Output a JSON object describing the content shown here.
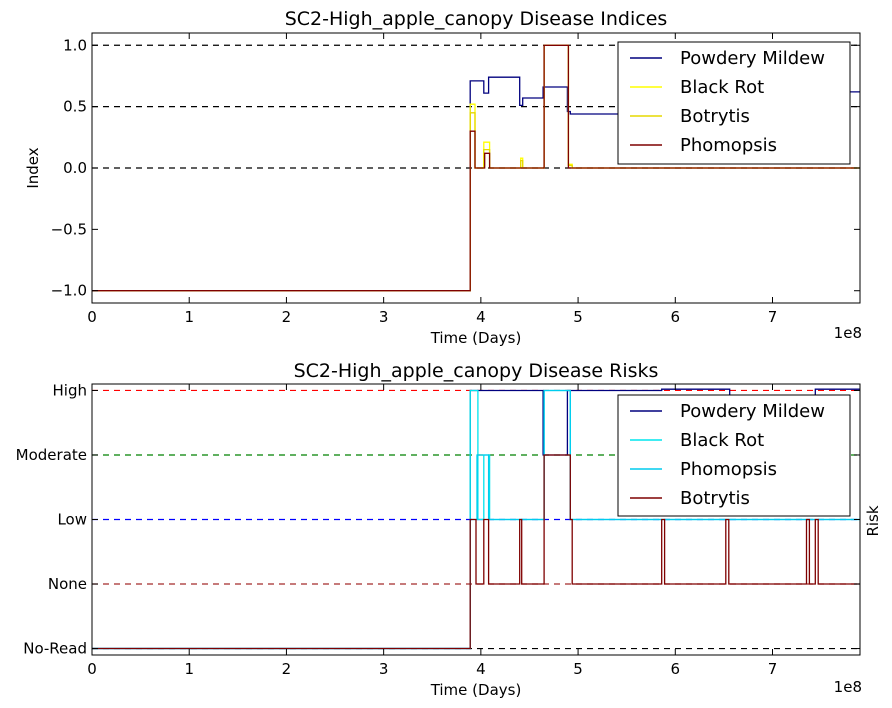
{
  "chart_data": [
    {
      "type": "line",
      "title": "SC2-High_apple_canopy Disease Indices",
      "xlabel": "Time (Days)",
      "ylabel": "Index",
      "x_offset_label": "1e8",
      "xlim": [
        0,
        790000000
      ],
      "ylim": [
        -1.1,
        1.1
      ],
      "x_ticks": [
        0,
        1,
        2,
        3,
        4,
        5,
        6,
        7
      ],
      "y_ticks": [
        {
          "value": 1.0,
          "label": "1.0"
        },
        {
          "value": 0.5,
          "label": "0.5"
        },
        {
          "value": 0.0,
          "label": "0.0"
        },
        {
          "value": -0.5,
          "label": "−0.5"
        },
        {
          "value": -1.0,
          "label": "−1.0"
        }
      ],
      "reference_lines": [
        {
          "y": 1.0,
          "color": "#000000"
        },
        {
          "y": 0.5,
          "color": "#000000"
        },
        {
          "y": 0.0,
          "color": "#000000"
        }
      ],
      "legend": "top-right",
      "series": [
        {
          "name": "Powdery Mildew",
          "color": "#00007f",
          "x": [
            0,
            389000000,
            389000000,
            403000000,
            403000000,
            408000000,
            408000000,
            440000000,
            440000000,
            443000000,
            443000000,
            464000000,
            464000000,
            489000000,
            489000000,
            492000000,
            492000000,
            563000000,
            563000000,
            790000000
          ],
          "y": [
            -1,
            -1,
            0.71,
            0.71,
            0.61,
            0.61,
            0.74,
            0.74,
            0.51,
            0.51,
            0.57,
            0.57,
            0.66,
            0.66,
            0.46,
            0.46,
            0.44,
            0.44,
            0.62,
            0.62
          ]
        },
        {
          "name": "Black Rot",
          "color": "#ffff00",
          "x": [
            0,
            389000000,
            389000000,
            394000000,
            394000000,
            403000000,
            403000000,
            409000000,
            409000000,
            441000000,
            441000000,
            443000000,
            443000000,
            465000000,
            465000000,
            490000000,
            490000000,
            494000000,
            494000000,
            790000000
          ],
          "y": [
            -1,
            -1,
            0.52,
            0.52,
            0,
            0,
            0.21,
            0.21,
            0,
            0,
            0.08,
            0.08,
            0,
            0,
            1,
            1,
            0.03,
            0.03,
            0,
            0
          ]
        },
        {
          "name": "Botrytis",
          "color": "#e6d800",
          "x": [
            0,
            389000000,
            389000000,
            394000000,
            394000000,
            403000000,
            403000000,
            409000000,
            409000000,
            441000000,
            441000000,
            443000000,
            443000000,
            465000000,
            465000000,
            490000000,
            490000000,
            494000000,
            494000000,
            790000000
          ],
          "y": [
            -1,
            -1,
            0.45,
            0.45,
            0,
            0,
            0.15,
            0.15,
            0,
            0,
            0.06,
            0.06,
            0,
            0,
            1,
            1,
            0.02,
            0.02,
            0,
            0
          ]
        },
        {
          "name": "Phomopsis",
          "color": "#7f0000",
          "x": [
            0,
            389000000,
            389000000,
            394000000,
            394000000,
            404000000,
            404000000,
            409000000,
            409000000,
            465000000,
            465000000,
            490000000,
            490000000,
            790000000
          ],
          "y": [
            -1,
            -1,
            0.3,
            0.3,
            0,
            0,
            0.12,
            0.12,
            0,
            0,
            1,
            1,
            0,
            0
          ]
        }
      ]
    },
    {
      "type": "line",
      "title": "SC2-High_apple_canopy Disease Risks",
      "xlabel": "Time (Days)",
      "ylabel": "Risk",
      "x_offset_label": "1e8",
      "xlim": [
        0,
        790000000
      ],
      "ylim": [
        -0.1,
        4.1
      ],
      "x_ticks": [
        0,
        1,
        2,
        3,
        4,
        5,
        6,
        7
      ],
      "y_ticks": [
        {
          "value": 4,
          "label": "High"
        },
        {
          "value": 3,
          "label": "Moderate"
        },
        {
          "value": 2,
          "label": "Low"
        },
        {
          "value": 1,
          "label": "None"
        },
        {
          "value": 0,
          "label": "No-Read"
        }
      ],
      "reference_lines": [
        {
          "y": 4,
          "color": "#ff0000"
        },
        {
          "y": 3,
          "color": "#008000"
        },
        {
          "y": 2,
          "color": "#0000ff"
        },
        {
          "y": 1,
          "color": "#a52a2a"
        },
        {
          "y": 0,
          "color": "#000000"
        }
      ],
      "legend": "top-right",
      "series": [
        {
          "name": "Powdery Mildew",
          "color": "#00007f",
          "x": [
            0,
            389000000,
            389000000,
            464000000,
            464000000,
            489000000,
            489000000,
            586000000,
            586000000,
            656000000,
            656000000,
            744000000,
            744000000,
            790000000
          ],
          "y": [
            0,
            0,
            4,
            4,
            3,
            3,
            4,
            4,
            4.02,
            4.02,
            3,
            3,
            4.02,
            4.02
          ]
        },
        {
          "name": "Black Rot",
          "color": "#00e5ee",
          "x": [
            0,
            389000000,
            389000000,
            397000000,
            397000000,
            403000000,
            403000000,
            409000000,
            409000000,
            465000000,
            465000000,
            492000000,
            492000000,
            790000000
          ],
          "y": [
            0,
            0,
            4,
            4,
            2,
            2,
            3,
            3,
            2,
            2,
            4,
            4,
            2,
            2
          ]
        },
        {
          "name": "Phomopsis",
          "color": "#00ccee",
          "x": [
            0,
            389000000,
            389000000,
            396000000,
            396000000,
            408000000,
            408000000,
            465000000,
            465000000,
            492000000,
            492000000,
            790000000
          ],
          "y": [
            0,
            0,
            2,
            2,
            3,
            3,
            2,
            2,
            4,
            4,
            2,
            2
          ]
        },
        {
          "name": "Botrytis",
          "color": "#7f0000",
          "x": [
            0,
            389000000,
            389000000,
            395000000,
            395000000,
            403000000,
            403000000,
            408000000,
            408000000,
            440000000,
            440000000,
            442000000,
            442000000,
            465000000,
            465000000,
            492000000,
            492000000,
            494000000,
            494000000,
            586000000,
            586000000,
            589000000,
            589000000,
            652000000,
            652000000,
            655000000,
            655000000,
            735000000,
            735000000,
            738000000,
            738000000,
            744000000,
            744000000,
            747000000,
            747000000,
            790000000
          ],
          "y": [
            0,
            0,
            2,
            2,
            1,
            1,
            2,
            2,
            1,
            1,
            2,
            2,
            1,
            1,
            3,
            3,
            2,
            2,
            1,
            1,
            2,
            2,
            1,
            1,
            2,
            2,
            1,
            1,
            2,
            2,
            1,
            1,
            2,
            2,
            1,
            1
          ]
        }
      ]
    }
  ]
}
